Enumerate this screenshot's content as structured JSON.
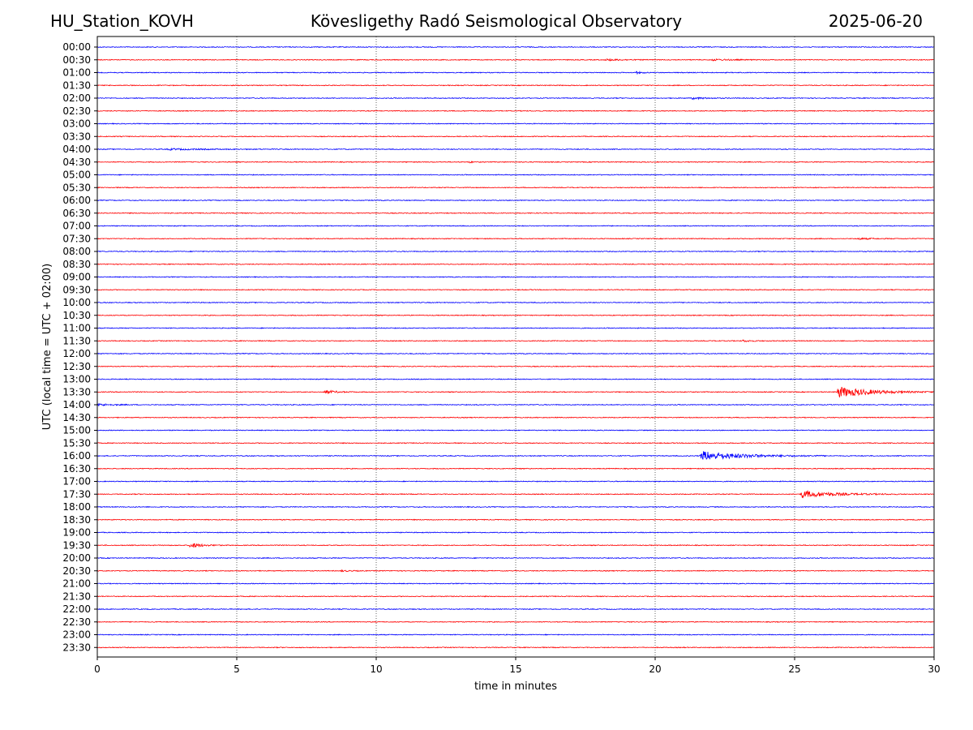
{
  "header": {
    "station": "HU_Station_KOVH",
    "observatory": "Kövesligethy Radó Seismological Observatory",
    "date": "2025-06-20"
  },
  "chart_data": {
    "type": "line",
    "title": "Kövesligethy Radó Seismological Observatory",
    "xlabel": "time in minutes",
    "ylabel": "UTC (local time = UTC + 02:00)",
    "xlim": [
      0,
      30
    ],
    "x_ticks": [
      0,
      5,
      10,
      15,
      20,
      25,
      30
    ],
    "grid_x": true,
    "grid_style": "dotted",
    "trace_labels": [
      "00:00",
      "00:30",
      "01:00",
      "01:30",
      "02:00",
      "02:30",
      "03:00",
      "03:30",
      "04:00",
      "04:30",
      "05:00",
      "05:30",
      "06:00",
      "06:30",
      "07:00",
      "07:30",
      "08:00",
      "08:30",
      "09:00",
      "09:30",
      "10:00",
      "10:30",
      "11:00",
      "11:30",
      "12:00",
      "12:30",
      "13:00",
      "13:30",
      "14:00",
      "14:30",
      "15:00",
      "15:30",
      "16:00",
      "16:30",
      "17:00",
      "17:30",
      "18:00",
      "18:30",
      "19:00",
      "19:30",
      "20:00",
      "20:30",
      "21:00",
      "21:30",
      "22:00",
      "22:30",
      "23:00",
      "23:30"
    ],
    "colors": {
      "even": "#0000ff",
      "odd": "#ff0000"
    },
    "events": [
      {
        "trace": "00:30",
        "start_min": 18.2,
        "duration_min": 1.5,
        "amplitude": 1.2
      },
      {
        "trace": "00:30",
        "start_min": 22.0,
        "duration_min": 2.0,
        "amplitude": 1.0
      },
      {
        "trace": "01:00",
        "start_min": 19.3,
        "duration_min": 0.6,
        "amplitude": 1.4
      },
      {
        "trace": "02:00",
        "start_min": 21.3,
        "duration_min": 1.5,
        "amplitude": 1.2
      },
      {
        "trace": "04:00",
        "start_min": 2.5,
        "duration_min": 4.0,
        "amplitude": 0.8
      },
      {
        "trace": "04:30",
        "start_min": 13.3,
        "duration_min": 0.5,
        "amplitude": 1.0
      },
      {
        "trace": "07:30",
        "start_min": 27.2,
        "duration_min": 1.5,
        "amplitude": 1.0
      },
      {
        "trace": "11:30",
        "start_min": 23.1,
        "duration_min": 1.0,
        "amplitude": 1.2
      },
      {
        "trace": "13:30",
        "start_min": 8.1,
        "duration_min": 1.2,
        "amplitude": 2.5
      },
      {
        "trace": "13:30",
        "start_min": 26.5,
        "duration_min": 3.5,
        "amplitude": 7.0
      },
      {
        "trace": "14:00",
        "start_min": 0.0,
        "duration_min": 1.5,
        "amplitude": 1.5
      },
      {
        "trace": "16:00",
        "start_min": 21.6,
        "duration_min": 4.5,
        "amplitude": 6.0
      },
      {
        "trace": "17:30",
        "start_min": 25.2,
        "duration_min": 3.5,
        "amplitude": 4.5
      },
      {
        "trace": "19:30",
        "start_min": 3.3,
        "duration_min": 1.2,
        "amplitude": 3.5
      },
      {
        "trace": "20:30",
        "start_min": 8.7,
        "duration_min": 1.0,
        "amplitude": 0.8
      }
    ]
  }
}
